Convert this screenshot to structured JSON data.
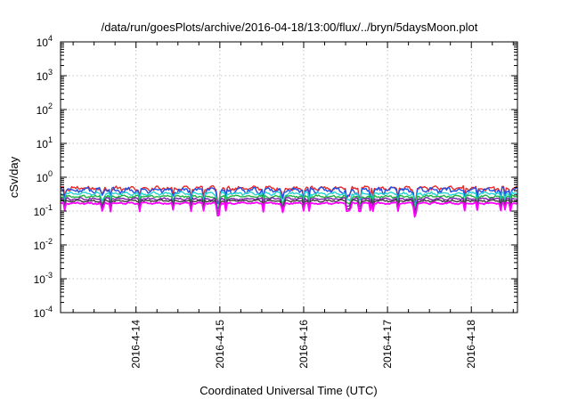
{
  "chart_data": {
    "type": "line",
    "title": "/data/run/goesPlots/archive/2016-04-18/13:00/flux/../bryn/5daysMoon.plot",
    "xlabel": "Coordinated Universal Time (UTC)",
    "ylabel": "cSv/day",
    "yscale": "log",
    "ylim": [
      0.0001,
      10000
    ],
    "xlim_days": [
      13.1,
      18.55
    ],
    "grid": true,
    "legend": "none",
    "y_ticks": [
      {
        "base": "10",
        "exp": "4"
      },
      {
        "base": "10",
        "exp": "3"
      },
      {
        "base": "10",
        "exp": "2"
      },
      {
        "base": "10",
        "exp": "1"
      },
      {
        "base": "10",
        "exp": "0"
      },
      {
        "base": "10",
        "exp": "-1"
      },
      {
        "base": "10",
        "exp": "-2"
      },
      {
        "base": "10",
        "exp": "-3"
      },
      {
        "base": "10",
        "exp": "-4"
      }
    ],
    "x_ticks": [
      {
        "label": "2016-4-14",
        "day": 14
      },
      {
        "label": "2016-4-15",
        "day": 15
      },
      {
        "label": "2016-4-16",
        "day": 16
      },
      {
        "label": "2016-4-17",
        "day": 17
      },
      {
        "label": "2016-4-18",
        "day": 18
      }
    ],
    "series": [
      {
        "color": "#e8282a",
        "base": 0.47,
        "amp": 0.18
      },
      {
        "color": "#1f4fe0",
        "base": 0.42,
        "amp": 0.22
      },
      {
        "color": "#25d3d3",
        "base": 0.33,
        "amp": 0.12
      },
      {
        "color": "#20b040",
        "base": 0.27,
        "amp": 0.1
      },
      {
        "color": "#7a1fa8",
        "base": 0.23,
        "amp": 0.09
      },
      {
        "color": "#404040",
        "base": 0.2,
        "amp": 0.08
      },
      {
        "color": "#ff00ff",
        "base": 0.17,
        "amp": 0.07
      }
    ],
    "dips": [
      {
        "day": 14.98,
        "depth": 0.2
      },
      {
        "day": 17.33,
        "depth": 0.25
      },
      {
        "day": 15.75,
        "depth": 0.5
      },
      {
        "day": 16.55,
        "depth": 0.55
      },
      {
        "day": 13.6,
        "depth": 0.55
      }
    ]
  }
}
